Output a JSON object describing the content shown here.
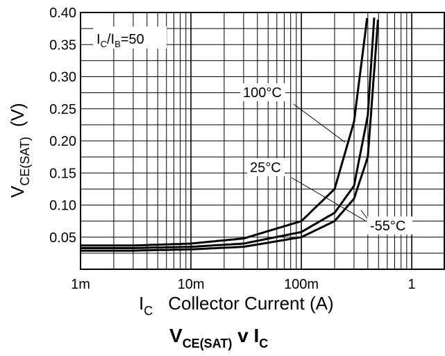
{
  "chart_data": {
    "type": "line",
    "title_main": "V",
    "title_sub": "CE(SAT)",
    "title_mid": " v I",
    "title_sub2": "C",
    "xlabel_main": "I",
    "xlabel_sub": "C",
    "xlabel_rest": "Collector Current (A)",
    "ylabel_main": "V",
    "ylabel_sub": "CE(SAT)",
    "ylabel_rest": "(V)",
    "x_scale": "log",
    "xlim": [
      0.001,
      2
    ],
    "ylim": [
      0.0,
      0.4
    ],
    "grid": true,
    "x_ticks": [
      {
        "value": 0.001,
        "label": "1m"
      },
      {
        "value": 0.01,
        "label": "10m"
      },
      {
        "value": 0.1,
        "label": "100m"
      },
      {
        "value": 1,
        "label": "1"
      }
    ],
    "y_ticks": [
      {
        "value": 0.05,
        "label": "0.05"
      },
      {
        "value": 0.1,
        "label": "0.10"
      },
      {
        "value": 0.15,
        "label": "0.15"
      },
      {
        "value": 0.2,
        "label": "0.20"
      },
      {
        "value": 0.25,
        "label": "0.25"
      },
      {
        "value": 0.3,
        "label": "0.30"
      },
      {
        "value": 0.35,
        "label": "0.35"
      },
      {
        "value": 0.4,
        "label": "0.40"
      }
    ],
    "condition": {
      "main1": "I",
      "sub1": "C",
      "slash": "/I",
      "sub2": "B",
      "rest": "=50"
    },
    "series": [
      {
        "name": "100°C",
        "x": [
          0.001,
          0.003,
          0.01,
          0.03,
          0.1,
          0.2,
          0.3,
          0.4
        ],
        "y": [
          0.037,
          0.037,
          0.04,
          0.048,
          0.075,
          0.125,
          0.23,
          0.4
        ]
      },
      {
        "name": "25°C",
        "x": [
          0.001,
          0.003,
          0.01,
          0.03,
          0.1,
          0.2,
          0.3,
          0.4,
          0.46
        ],
        "y": [
          0.033,
          0.033,
          0.035,
          0.04,
          0.058,
          0.088,
          0.13,
          0.24,
          0.4
        ]
      },
      {
        "name": "-55°C",
        "x": [
          0.001,
          0.003,
          0.01,
          0.03,
          0.1,
          0.2,
          0.3,
          0.4,
          0.5
        ],
        "y": [
          0.029,
          0.029,
          0.031,
          0.035,
          0.05,
          0.075,
          0.11,
          0.175,
          0.4
        ]
      }
    ]
  }
}
